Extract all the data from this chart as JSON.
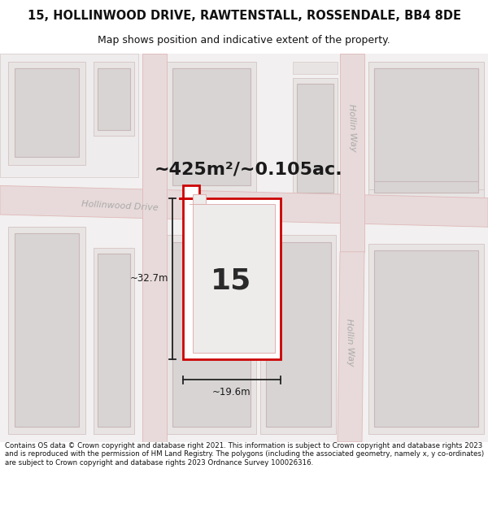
{
  "title": "15, HOLLINWOOD DRIVE, RAWTENSTALL, ROSSENDALE, BB4 8DE",
  "subtitle": "Map shows position and indicative extent of the property.",
  "footer": "Contains OS data © Crown copyright and database right 2021. This information is subject to Crown copyright and database rights 2023 and is reproduced with the permission of HM Land Registry. The polygons (including the associated geometry, namely x, y co-ordinates) are subject to Crown copyright and database rights 2023 Ordnance Survey 100026316.",
  "map_bg": "#f2f0f0",
  "road_color": "#e8dada",
  "road_stroke": "#e0b8b8",
  "property_stroke": "#cc0000",
  "building_fill": "#d8d4d4",
  "building_stroke": "#c8b8b8",
  "block_fill": "#e8e4e4",
  "block_stroke": "#d8c8c8",
  "area_text": "~425m²/~0.105ac.",
  "label_number": "15",
  "dim_width": "~19.6m",
  "dim_height": "~32.7m",
  "street_label_hollinwood": "Hollinwood Drive",
  "street_label_hollin1": "Hollin Way",
  "street_label_hollin2": "Hollin Way"
}
